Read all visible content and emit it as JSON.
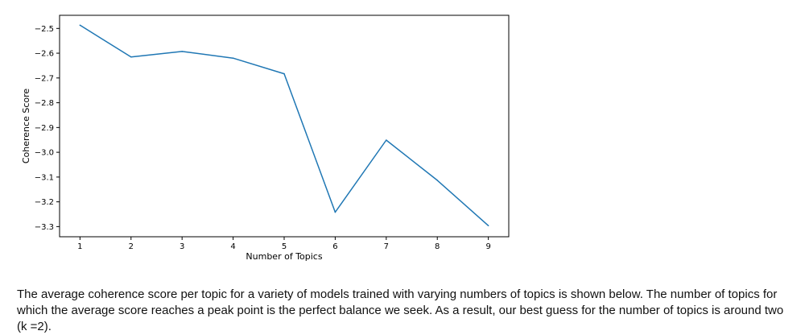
{
  "chart_data": {
    "type": "line",
    "x": [
      1,
      2,
      3,
      4,
      5,
      6,
      7,
      8,
      9
    ],
    "series": [
      {
        "values": [
          -2.487,
          -2.615,
          -2.593,
          -2.62,
          -2.683,
          -3.242,
          -2.951,
          -3.113,
          -3.296
        ],
        "color": "#1f77b4"
      }
    ],
    "xlabel": "Number of Topics",
    "ylabel": "Coherence Score",
    "xlim": [
      0.6,
      9.4
    ],
    "ylim": [
      -3.341,
      -2.447
    ],
    "xticks": [
      "1",
      "2",
      "3",
      "4",
      "5",
      "6",
      "7",
      "8",
      "9"
    ],
    "yticks": [
      {
        "value": -2.5,
        "label": "−2.5"
      },
      {
        "value": -2.6,
        "label": "−2.6"
      },
      {
        "value": -2.7,
        "label": "−2.7"
      },
      {
        "value": -2.8,
        "label": "−2.8"
      },
      {
        "value": -2.9,
        "label": "−2.9"
      },
      {
        "value": -3.0,
        "label": "−3.0"
      },
      {
        "value": -3.1,
        "label": "−3.1"
      },
      {
        "value": -3.2,
        "label": "−3.2"
      },
      {
        "value": -3.3,
        "label": "−3.3"
      }
    ],
    "grid": false,
    "legend": "none"
  },
  "caption": {
    "text": "The average coherence score per topic for a variety of models trained with varying numbers of topics is shown below. The number of topics for which the average score reaches a peak point is the perfect balance we seek. As a result, our best guess for the number of topics is around two (k =2)."
  }
}
